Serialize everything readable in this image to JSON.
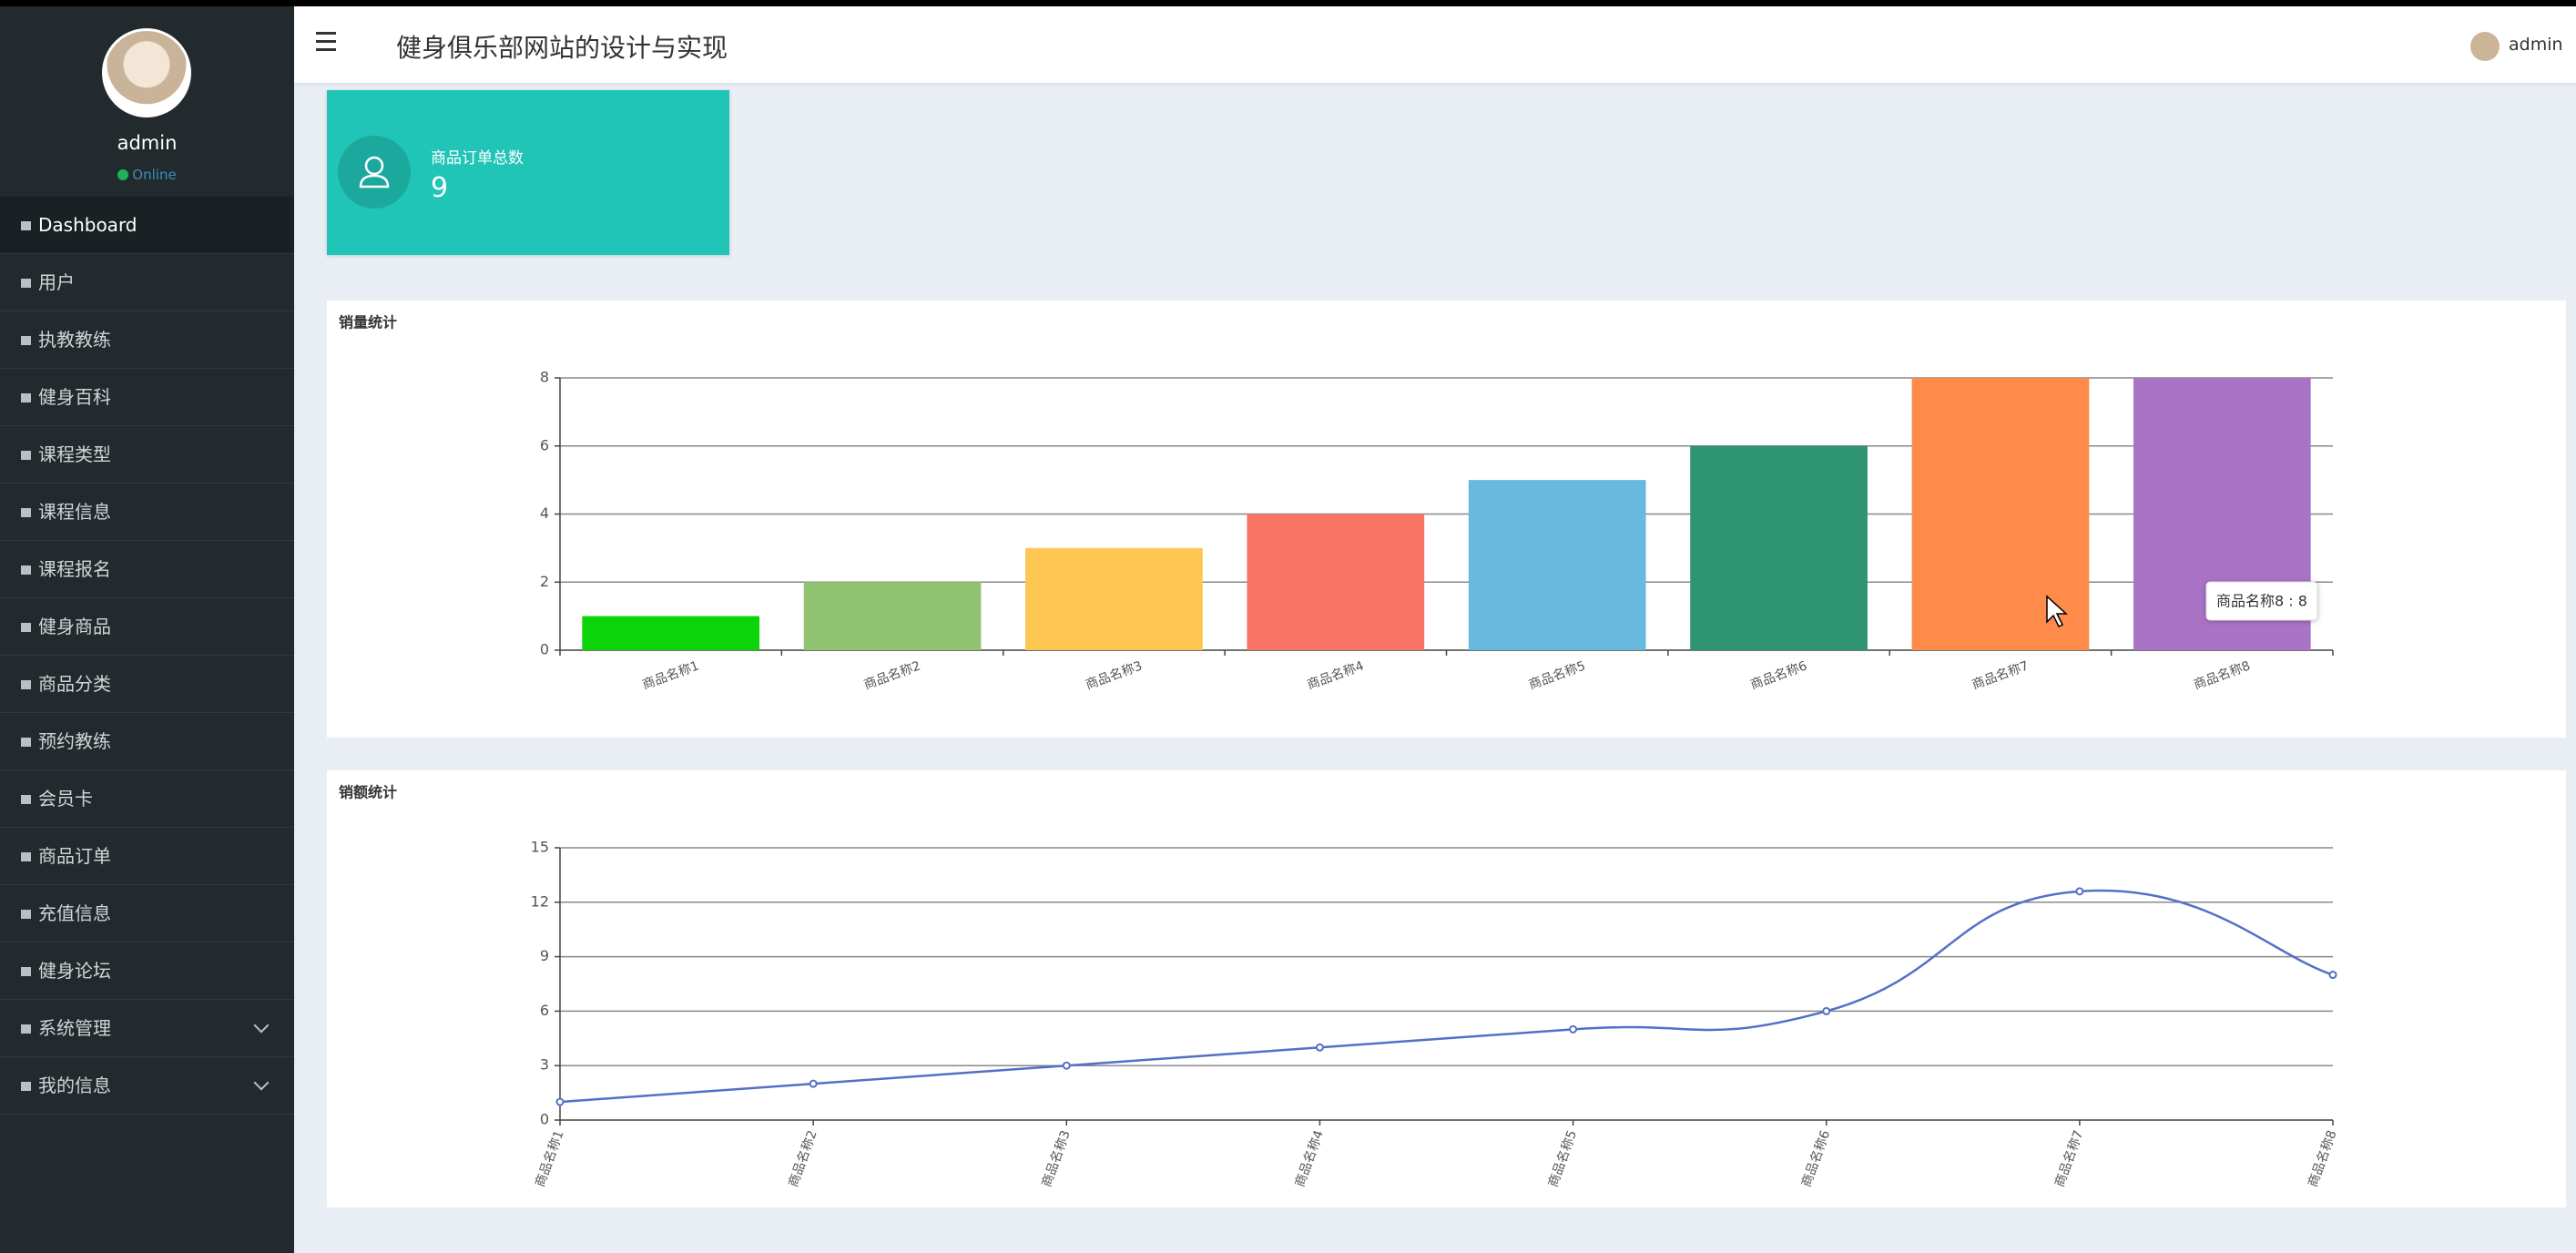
{
  "sidebar": {
    "user": "admin",
    "status": "Online",
    "menu": [
      "Dashboard",
      "用户",
      "执教教练",
      "健身百科",
      "课程类型",
      "课程信息",
      "课程报名",
      "健身商品",
      "商品分类",
      "预约教练",
      "会员卡",
      "商品订单",
      "充值信息",
      "健身论坛",
      {
        "label": "系统管理",
        "expandable": true
      },
      {
        "label": "我的信息",
        "expandable": true
      }
    ]
  },
  "header": {
    "title": "健身俱乐部网站的设计与实现",
    "user": "admin"
  },
  "card": {
    "label": "商品订单总数",
    "value": 9
  },
  "chart_data": [
    {
      "type": "bar",
      "title": "销量统计",
      "categories": [
        "商品名称1",
        "商品名称2",
        "商品名称3",
        "商品名称4",
        "商品名称5",
        "商品名称6",
        "商品名称7",
        "商品名称8"
      ],
      "values": [
        1,
        2,
        3,
        4,
        5,
        6,
        8,
        8
      ],
      "colors": [
        "#0bd40b",
        "#91c272",
        "#fec652",
        "#f87465",
        "#69b9df",
        "#2f9471",
        "#ff8b4a",
        "#a974c6"
      ],
      "ylim": [
        0,
        8
      ],
      "yticks": [
        0,
        2,
        4,
        6,
        8
      ],
      "grid": true,
      "tooltip": "商品名称8 : 8"
    },
    {
      "type": "line",
      "title": "销额统计",
      "categories": [
        "商品名称1",
        "商品名称2",
        "商品名称3",
        "商品名称4",
        "商品名称5",
        "商品名称6",
        "商品名称7",
        "商品名称8"
      ],
      "values": [
        1,
        2,
        3,
        4,
        5,
        6,
        12.6,
        8
      ],
      "color": "#5470c6",
      "ylim": [
        0,
        15
      ],
      "yticks": [
        0,
        3,
        6,
        9,
        12,
        15
      ],
      "grid": true
    }
  ]
}
